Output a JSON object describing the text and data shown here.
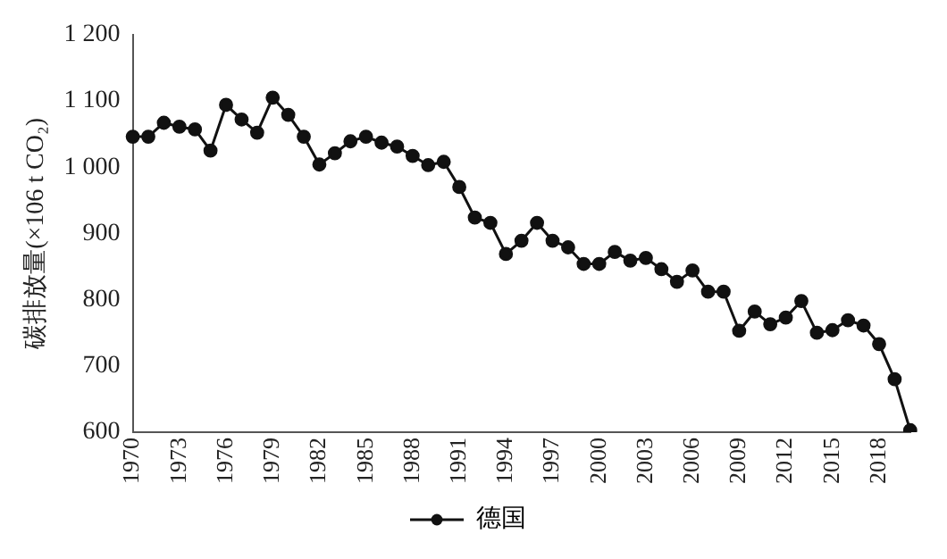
{
  "chart_data": {
    "type": "line",
    "ylabel": "碳排放量(×106 t CO₂)",
    "categories": [
      "1970",
      null,
      null,
      "1973",
      null,
      null,
      "1976",
      null,
      null,
      "1979",
      null,
      null,
      "1982",
      null,
      null,
      "1985",
      null,
      null,
      "1988",
      null,
      null,
      "1991",
      null,
      null,
      "1994",
      null,
      null,
      "1997",
      null,
      null,
      "2000",
      null,
      null,
      "2003",
      null,
      null,
      "2006",
      null,
      null,
      "2009",
      null,
      null,
      "2012",
      null,
      null,
      "2015",
      null,
      null,
      "2018",
      null,
      null
    ],
    "series": [
      {
        "name": "德国",
        "color": "#111111",
        "values": [
          1046,
          1046,
          1067,
          1061,
          1057,
          1025,
          1094,
          1072,
          1052,
          1105,
          1079,
          1046,
          1004,
          1021,
          1039,
          1046,
          1037,
          1031,
          1017,
          1003,
          1008,
          970,
          924,
          916,
          869,
          889,
          916,
          889,
          879,
          854,
          854,
          872,
          859,
          863,
          846,
          827,
          844,
          812,
          812,
          753,
          782,
          763,
          773,
          798,
          750,
          754,
          769,
          761,
          733,
          680,
          603
        ]
      }
    ],
    "ylim": [
      600,
      1200
    ],
    "yticks": [
      600,
      700,
      800,
      900,
      {
        "value": 1000,
        "label": "1 000"
      },
      {
        "value": 1100,
        "label": "1 100"
      },
      {
        "value": 1200,
        "label": "1 200"
      }
    ],
    "grid": false,
    "legend": "bottom",
    "marker": "circle",
    "line_style": "solid"
  }
}
